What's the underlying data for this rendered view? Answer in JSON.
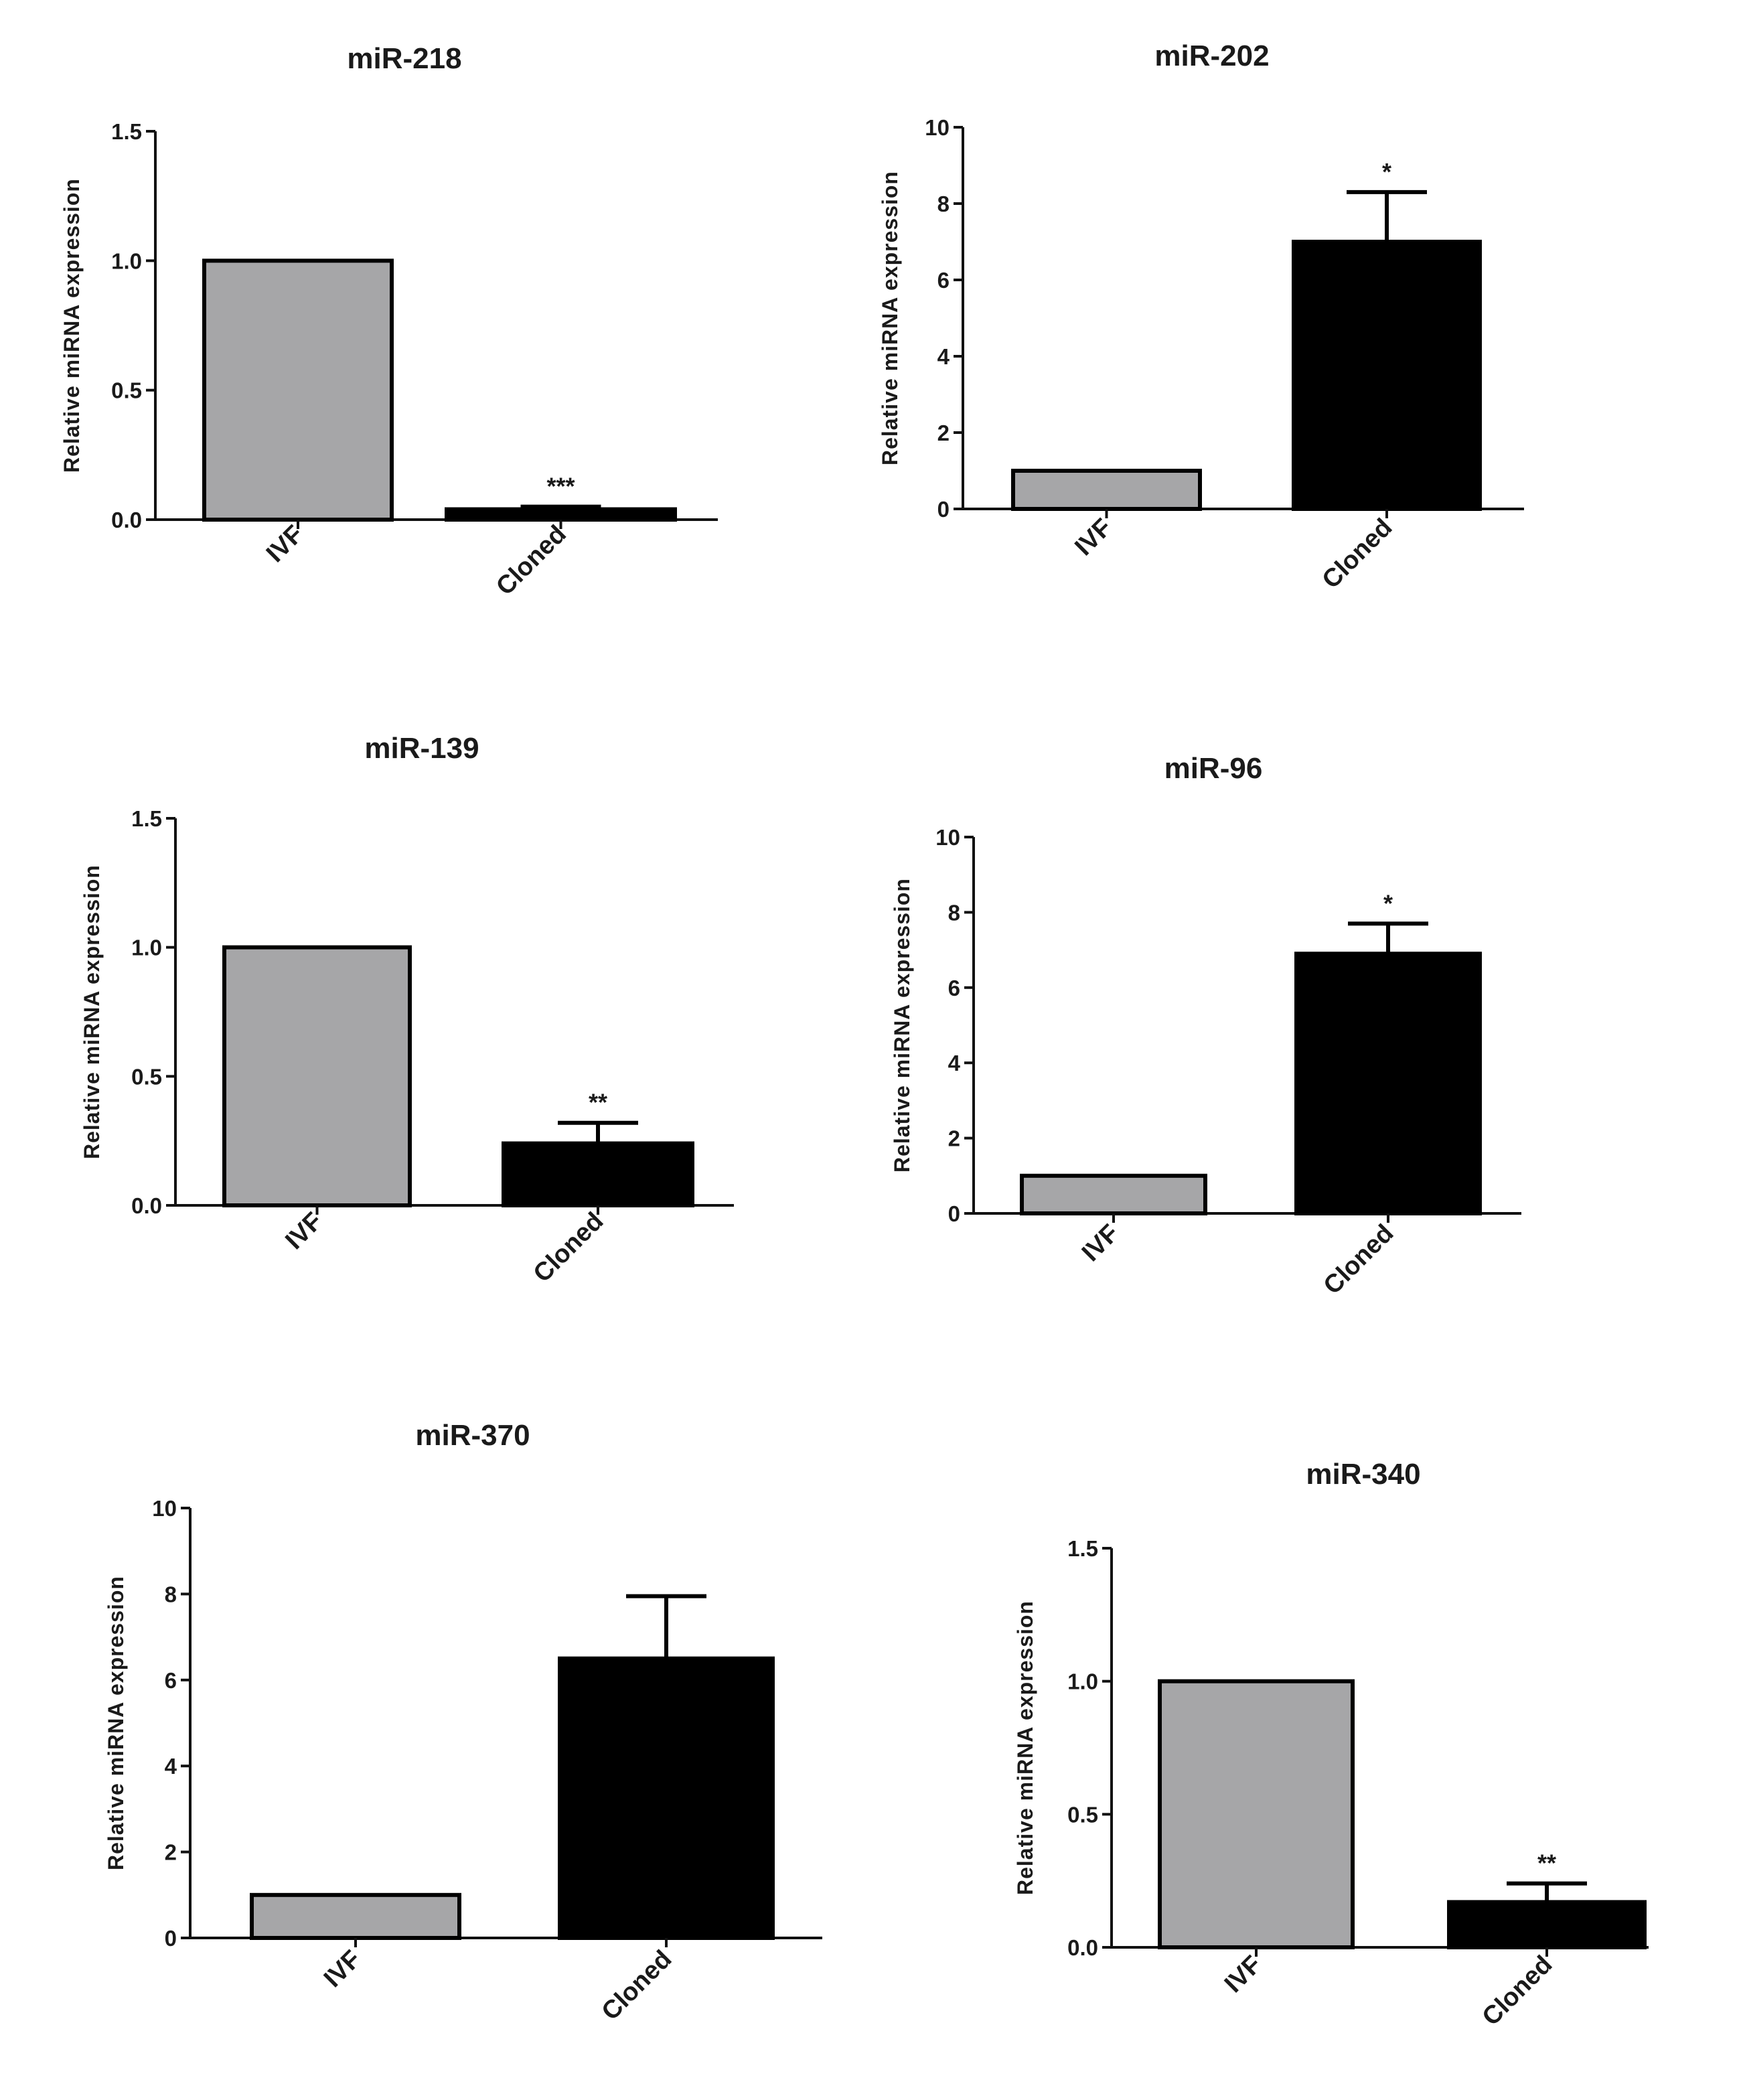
{
  "figure": {
    "colors": {
      "IVF": "#a6a6a8",
      "Cloned": "#000000",
      "axis": "#111111"
    }
  },
  "chart_data": [
    {
      "type": "bar",
      "title": "miR-218",
      "ylabel": "Relative miRNA expression",
      "categories": [
        "IVF",
        "Cloned"
      ],
      "values": [
        1.0,
        0.04
      ],
      "error": [
        0,
        0.01
      ],
      "significance": [
        "",
        "***"
      ],
      "ylim": [
        0,
        1.5
      ],
      "yticks": [
        0.0,
        0.5,
        1.0,
        1.5
      ],
      "ytick_labels": [
        "0.0",
        "0.5",
        "1.0",
        "1.5"
      ]
    },
    {
      "type": "bar",
      "title": "miR-202",
      "ylabel": "Relative miRNA expression",
      "categories": [
        "IVF",
        "Cloned"
      ],
      "values": [
        1.0,
        7.0
      ],
      "error": [
        0,
        1.3
      ],
      "significance": [
        "",
        "*"
      ],
      "ylim": [
        0,
        10
      ],
      "yticks": [
        0,
        2,
        4,
        6,
        8,
        10
      ],
      "ytick_labels": [
        "0",
        "2",
        "4",
        "6",
        "8",
        "10"
      ]
    },
    {
      "type": "bar",
      "title": "miR-139",
      "ylabel": "Relative miRNA expression",
      "categories": [
        "IVF",
        "Cloned"
      ],
      "values": [
        1.0,
        0.24
      ],
      "error": [
        0,
        0.08
      ],
      "significance": [
        "",
        "**"
      ],
      "ylim": [
        0,
        1.5
      ],
      "yticks": [
        0.0,
        0.5,
        1.0,
        1.5
      ],
      "ytick_labels": [
        "0.0",
        "0.5",
        "1.0",
        "1.5"
      ]
    },
    {
      "type": "bar",
      "title": "miR-96",
      "ylabel": "Relative miRNA expression",
      "categories": [
        "IVF",
        "Cloned"
      ],
      "values": [
        1.0,
        6.9
      ],
      "error": [
        0,
        0.8
      ],
      "significance": [
        "",
        "*"
      ],
      "ylim": [
        0,
        10
      ],
      "yticks": [
        0,
        2,
        4,
        6,
        8,
        10
      ],
      "ytick_labels": [
        "0",
        "2",
        "4",
        "6",
        "8",
        "10"
      ]
    },
    {
      "type": "bar",
      "title": "miR-370",
      "ylabel": "Relative miRNA expression",
      "categories": [
        "IVF",
        "Cloned"
      ],
      "values": [
        1.0,
        6.5
      ],
      "error": [
        0,
        1.45
      ],
      "significance": [
        "",
        ""
      ],
      "ylim": [
        0,
        10
      ],
      "yticks": [
        0,
        2,
        4,
        6,
        8,
        10
      ],
      "ytick_labels": [
        "0",
        "2",
        "4",
        "6",
        "8",
        "10"
      ]
    },
    {
      "type": "bar",
      "title": "miR-340",
      "ylabel": "Relative miRNA expression",
      "categories": [
        "IVF",
        "Cloned"
      ],
      "values": [
        1.0,
        0.17
      ],
      "error": [
        0,
        0.07
      ],
      "significance": [
        "",
        "**"
      ],
      "ylim": [
        0,
        1.5
      ],
      "yticks": [
        0.0,
        0.5,
        1.0,
        1.5
      ],
      "ytick_labels": [
        "0.0",
        "0.5",
        "1.0",
        "1.5"
      ]
    }
  ]
}
